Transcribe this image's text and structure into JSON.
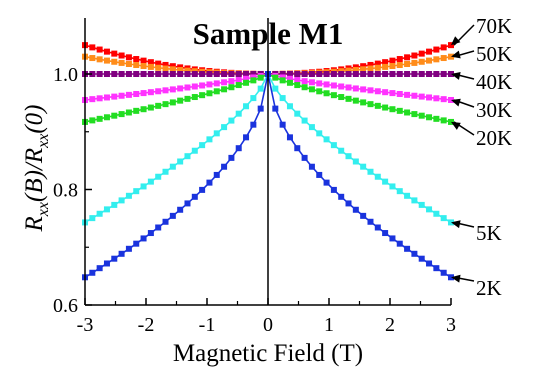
{
  "chart_data": {
    "type": "line",
    "title": "Sample M1",
    "xlabel": "Magnetic Field (T)",
    "ylabel": {
      "R": "R",
      "sub1": "xx",
      "mid": "(B)/R",
      "sub2": "xx",
      "end": "(0)"
    },
    "xlim": [
      -3,
      3
    ],
    "ylim": [
      0.6,
      1.1
    ],
    "xticks": [
      "-3",
      "-2",
      "-1",
      "0",
      "1",
      "2",
      "3"
    ],
    "yticks": [
      "0.6",
      "0.8",
      "1.0"
    ],
    "grid": false,
    "legend": "right-side arrow labels",
    "series": [
      {
        "name": "70K",
        "color": "#ff0000",
        "end_value": 1.05,
        "shape": "parabolic"
      },
      {
        "name": "50K",
        "color": "#ff8c1a",
        "end_value": 1.03,
        "shape": "parabolic"
      },
      {
        "name": "40K",
        "color": "#800080",
        "end_value": 1.0,
        "shape": "parabolic"
      },
      {
        "name": "30K",
        "color": "#ff33ff",
        "end_value": 0.955,
        "shape": "cusp",
        "cusp_exp": 0.8
      },
      {
        "name": "20K",
        "color": "#22dd22",
        "end_value": 0.917,
        "shape": "cusp",
        "cusp_exp": 0.8
      },
      {
        "name": "5K",
        "color": "#33eeee",
        "end_value": 0.743,
        "shape": "cusp",
        "cusp_exp": 0.72
      },
      {
        "name": "2K",
        "color": "#1a33dd",
        "end_value": 0.648,
        "shape": "cusp",
        "cusp_exp": 0.55
      }
    ]
  }
}
